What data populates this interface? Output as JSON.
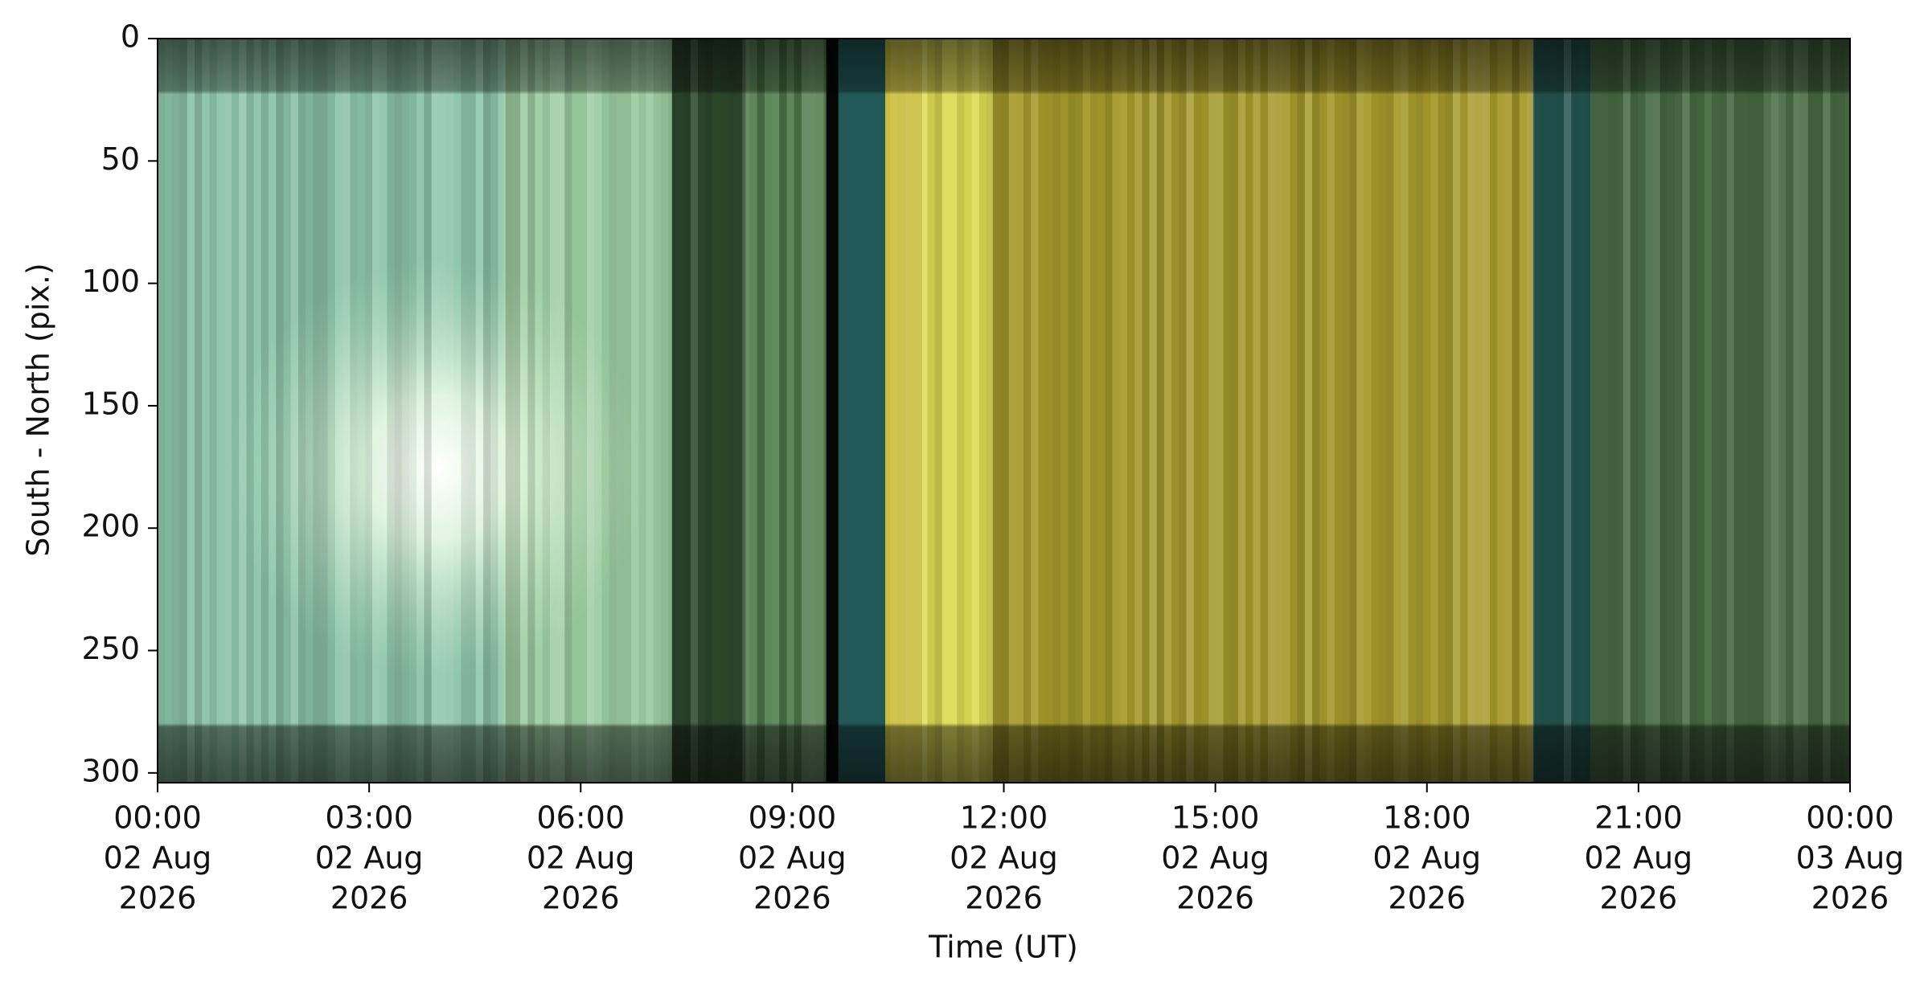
{
  "chart_data": {
    "type": "image",
    "xlabel": "Time (UT)",
    "ylabel": "South - North (pix.)",
    "xlim": [
      "2026-08-02T00:00",
      "2026-08-03T00:00"
    ],
    "xticks": [
      {
        "value": "2026-08-02T00:00",
        "label": [
          "00:00",
          "02 Aug",
          "2026"
        ]
      },
      {
        "value": "2026-08-02T03:00",
        "label": [
          "03:00",
          "02 Aug",
          "2026"
        ]
      },
      {
        "value": "2026-08-02T06:00",
        "label": [
          "06:00",
          "02 Aug",
          "2026"
        ]
      },
      {
        "value": "2026-08-02T09:00",
        "label": [
          "09:00",
          "02 Aug",
          "2026"
        ]
      },
      {
        "value": "2026-08-02T12:00",
        "label": [
          "12:00",
          "02 Aug",
          "2026"
        ]
      },
      {
        "value": "2026-08-02T15:00",
        "label": [
          "15:00",
          "02 Aug",
          "2026"
        ]
      },
      {
        "value": "2026-08-02T18:00",
        "label": [
          "18:00",
          "02 Aug",
          "2026"
        ]
      },
      {
        "value": "2026-08-02T21:00",
        "label": [
          "21:00",
          "02 Aug",
          "2026"
        ]
      },
      {
        "value": "2026-08-03T00:00",
        "label": [
          "00:00",
          "03 Aug",
          "2026"
        ]
      }
    ],
    "ylim": [
      304,
      0
    ],
    "yticks": [
      0,
      50,
      100,
      150,
      200,
      250,
      300
    ]
  }
}
